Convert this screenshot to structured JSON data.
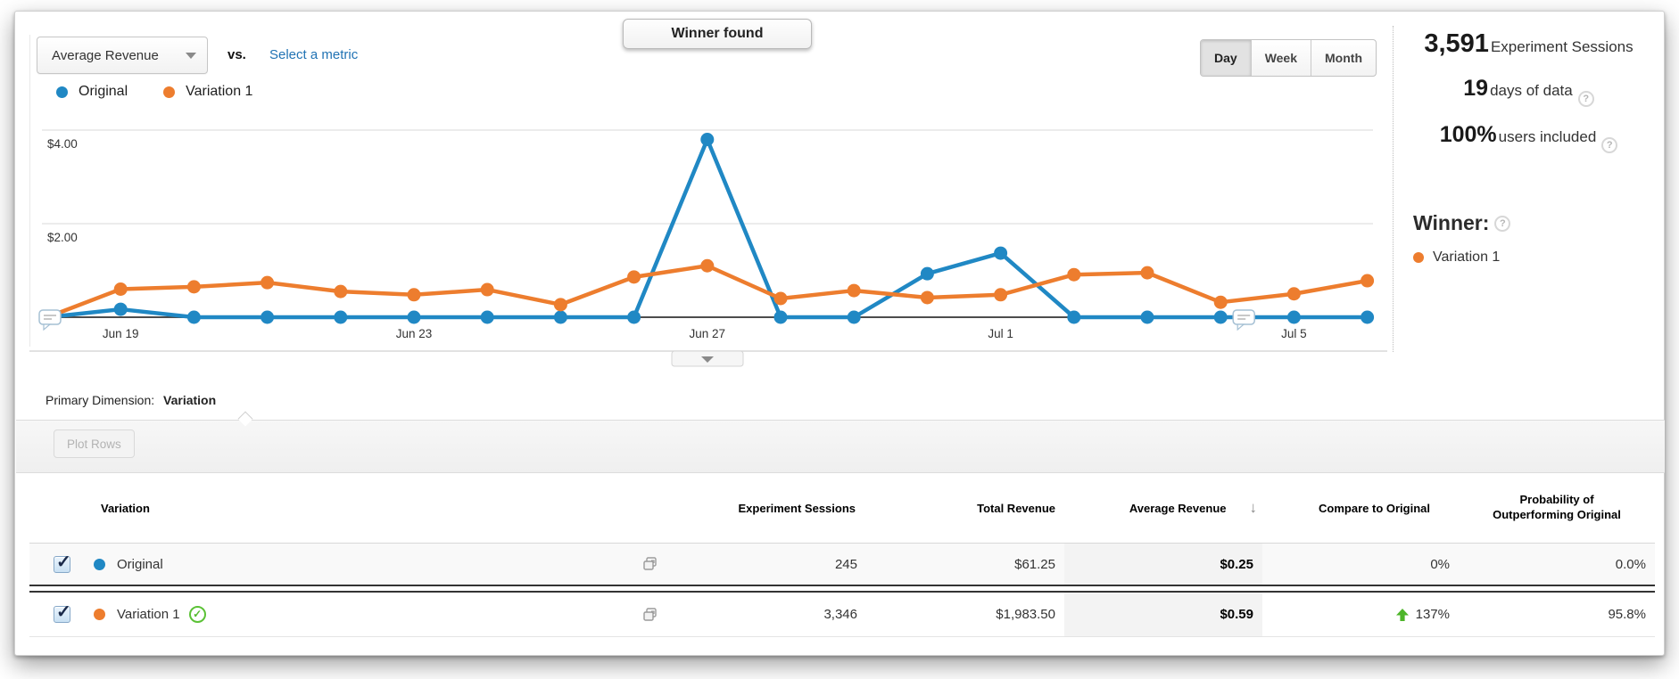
{
  "colors": {
    "original": "#2088C4",
    "variation": "#ED7D2E",
    "positive_green": "#4DB52A",
    "link_blue": "#2173b4"
  },
  "header": {
    "metric_selector_value": "Average Revenue",
    "vs_label": "vs.",
    "select_metric_label": "Select a metric",
    "winner_banner": "Winner found",
    "granularity": {
      "day": "Day",
      "week": "Week",
      "month": "Month",
      "active": "Day"
    }
  },
  "stats": {
    "sessions": {
      "value": "3,591",
      "label": "Experiment Sessions"
    },
    "days": {
      "value": "19",
      "label": "days of data",
      "help": "?"
    },
    "users": {
      "value": "100%",
      "label": "users included",
      "help": "?"
    }
  },
  "winner": {
    "title": "Winner:",
    "help": "?",
    "name": "Variation 1"
  },
  "legend": [
    {
      "label": "Original",
      "color": "#2088C4"
    },
    {
      "label": "Variation 1",
      "color": "#ED7D2E"
    }
  ],
  "chart_data": {
    "type": "line",
    "x": [
      "Jun 18",
      "Jun 19",
      "Jun 20",
      "Jun 21",
      "Jun 22",
      "Jun 23",
      "Jun 24",
      "Jun 25",
      "Jun 26",
      "Jun 27",
      "Jun 28",
      "Jun 29",
      "Jun 30",
      "Jul 1",
      "Jul 2",
      "Jul 3",
      "Jul 4",
      "Jul 5",
      "Jul 6"
    ],
    "x_tick_labels": [
      "Jun 19",
      "Jun 23",
      "Jun 27",
      "Jul 1",
      "Jul 5"
    ],
    "x_tick_indices": [
      1,
      5,
      9,
      13,
      17
    ],
    "y_ticks": [
      {
        "value": 2,
        "label": "$2.00"
      },
      {
        "value": 4,
        "label": "$4.00"
      }
    ],
    "ylim": [
      0,
      4.4
    ],
    "grid": "horizontal-only",
    "legend_position": "top-left",
    "series": [
      {
        "name": "Original",
        "color": "#2088C4",
        "values": [
          0,
          0.17,
          0,
          0,
          0,
          0,
          0,
          0,
          0,
          3.8,
          0,
          0,
          0.93,
          1.37,
          0,
          0,
          0,
          0,
          0
        ]
      },
      {
        "name": "Variation 1",
        "color": "#ED7D2E",
        "values": [
          0,
          0.6,
          0.65,
          0.74,
          0.55,
          0.48,
          0.59,
          0.27,
          0.86,
          1.1,
          0.4,
          0.57,
          0.42,
          0.48,
          0.91,
          0.95,
          0.32,
          0.5,
          0.78
        ]
      }
    ],
    "annotations": [
      {
        "index": 0
      },
      {
        "index": 16
      }
    ]
  },
  "primary_dimension": {
    "label": "Primary Dimension:",
    "value": "Variation"
  },
  "toolbar": {
    "plot_rows_label": "Plot Rows"
  },
  "table": {
    "columns": [
      "Variation",
      "Experiment Sessions",
      "Total Revenue",
      "Average Revenue",
      "Compare to Original",
      "Probability of Outperforming Original"
    ],
    "sorted_column": "Average Revenue",
    "sort_direction": "desc",
    "rows": [
      {
        "name": "Original",
        "color": "#2088C4",
        "checked": true,
        "winner": false,
        "sessions": "245",
        "total_revenue": "$61.25",
        "avg_revenue": "$0.25",
        "compare": "0%",
        "compare_up": false,
        "probability": "0.0%"
      },
      {
        "name": "Variation 1",
        "color": "#ED7D2E",
        "checked": true,
        "winner": true,
        "sessions": "3,346",
        "total_revenue": "$1,983.50",
        "avg_revenue": "$0.59",
        "compare": "137%",
        "compare_up": true,
        "probability": "95.8%"
      }
    ]
  }
}
